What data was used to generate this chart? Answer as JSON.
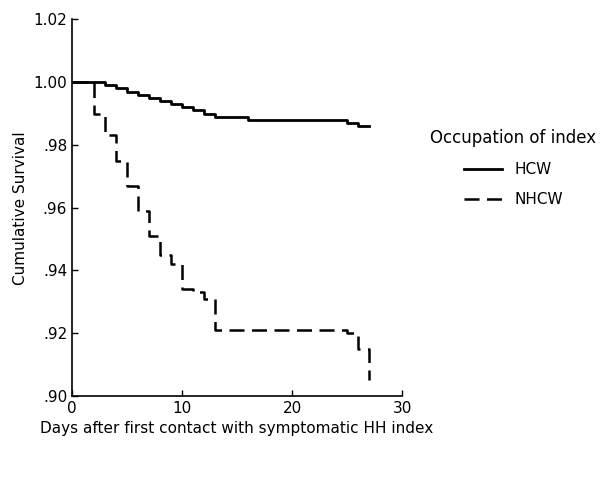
{
  "title": "",
  "xlabel": "Days after first contact with symptomatic HH index",
  "ylabel": "Cumulative Survival",
  "xlim": [
    0,
    30
  ],
  "ylim": [
    0.9,
    1.02
  ],
  "yticks": [
    0.9,
    0.92,
    0.94,
    0.96,
    0.98,
    1.0,
    1.02
  ],
  "xticks": [
    0,
    10,
    20,
    30
  ],
  "ytick_labels": [
    ".90",
    ".92",
    ".94",
    ".96",
    ".98",
    "1.00",
    "1.02"
  ],
  "xtick_labels": [
    "0",
    "10",
    "20",
    "30"
  ],
  "hcw_x": [
    0,
    3,
    4,
    5,
    6,
    7,
    8,
    9,
    10,
    11,
    12,
    13,
    14,
    15,
    16,
    24,
    25,
    26,
    27
  ],
  "hcw_y": [
    1.0,
    0.999,
    0.998,
    0.997,
    0.996,
    0.995,
    0.994,
    0.993,
    0.992,
    0.991,
    0.99,
    0.989,
    0.989,
    0.989,
    0.988,
    0.988,
    0.987,
    0.986,
    0.986
  ],
  "nhcw_x": [
    0,
    2,
    3,
    4,
    5,
    6,
    7,
    8,
    9,
    10,
    11,
    12,
    13,
    14,
    25,
    26,
    27
  ],
  "nhcw_y": [
    1.0,
    0.99,
    0.983,
    0.975,
    0.967,
    0.959,
    0.951,
    0.945,
    0.942,
    0.934,
    0.933,
    0.931,
    0.921,
    0.921,
    0.92,
    0.915,
    0.905
  ],
  "legend_title": "Occupation of index",
  "hcw_label": "HCW",
  "nhcw_label": "NHCW",
  "line_color": "#000000",
  "background_color": "#ffffff",
  "xlabel_fontsize": 11,
  "ylabel_fontsize": 11,
  "tick_fontsize": 11,
  "legend_title_fontsize": 12,
  "legend_fontsize": 11
}
